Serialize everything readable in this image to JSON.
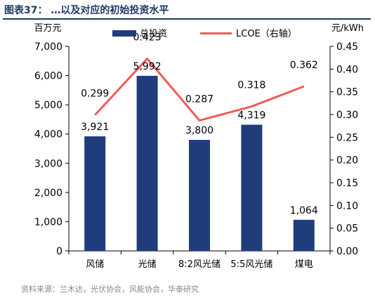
{
  "figure": {
    "title": "图表37：  …以及对应的初始投资水平",
    "source": "资料来源：兰木达，光伏协会，风能协会，华泰研究"
  },
  "chart_data": {
    "type": "bar",
    "categories": [
      "风储",
      "光储",
      "8:2风光储",
      "5:5风光储",
      "煤电"
    ],
    "series": [
      {
        "name": "总投资",
        "type": "bar",
        "axis": "left",
        "values": [
          3921,
          5992,
          3800,
          4319,
          1064
        ],
        "labels": [
          "3,921",
          "5,992",
          "3,800",
          "4,319",
          "1,064"
        ],
        "color": "#1f3d7a"
      },
      {
        "name": "LCOE（右轴）",
        "type": "line",
        "axis": "right",
        "values": [
          0.299,
          0.423,
          0.287,
          0.318,
          0.362
        ],
        "labels": [
          "0.299",
          "0.423",
          "0.287",
          "0.318",
          "0.362"
        ],
        "color": "#f05a5a"
      }
    ],
    "y_left": {
      "unit": "百万元",
      "min": 0,
      "max": 7000,
      "ticks": [
        0,
        1000,
        2000,
        3000,
        4000,
        5000,
        6000,
        7000
      ],
      "tick_labels": [
        "0",
        "1,000",
        "2,000",
        "3,000",
        "4,000",
        "5,000",
        "6,000",
        "7,000"
      ]
    },
    "y_right": {
      "unit": "元/kWh",
      "min": 0,
      "max": 0.45,
      "ticks": [
        0,
        0.05,
        0.1,
        0.15,
        0.2,
        0.25,
        0.3,
        0.35,
        0.4,
        0.45
      ],
      "tick_labels": [
        "0.00",
        "0.05",
        "0.10",
        "0.15",
        "0.20",
        "0.25",
        "0.30",
        "0.35",
        "0.40",
        "0.45"
      ]
    },
    "legend": {
      "position": "top-center"
    },
    "grid": false
  }
}
